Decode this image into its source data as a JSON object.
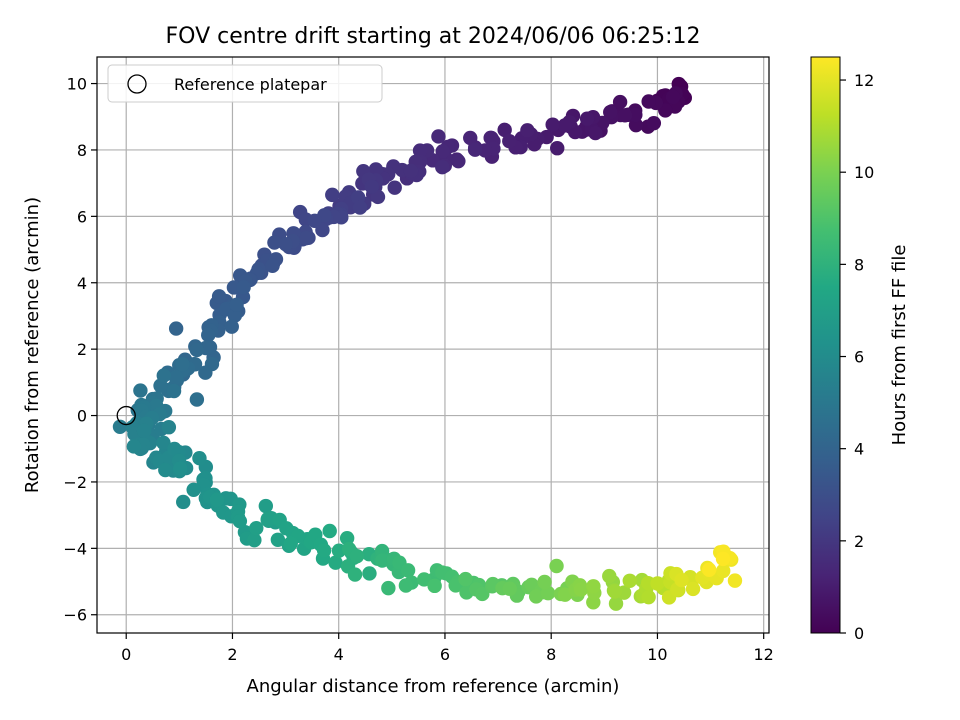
{
  "chart_data": {
    "type": "scatter",
    "title": "FOV centre drift starting at 2024/06/06 06:25:12",
    "xlabel": "Angular distance from reference (arcmin)",
    "ylabel": "Rotation from reference (arcmin)",
    "xlim": [
      -0.55,
      12.1
    ],
    "ylim": [
      -6.55,
      10.8
    ],
    "x_ticks": [
      0,
      2,
      4,
      6,
      8,
      10,
      12
    ],
    "y_ticks": [
      -6,
      -4,
      -2,
      0,
      2,
      4,
      6,
      8,
      10
    ],
    "grid": true,
    "legend": {
      "placement": "upper-left",
      "entries": [
        "Reference platepar"
      ]
    },
    "reference_point": {
      "x": 0,
      "y": 0
    },
    "colorbar": {
      "label": "Hours from first FF file",
      "range": [
        0,
        12.5
      ],
      "ticks": [
        0,
        2,
        4,
        6,
        8,
        10,
        12
      ],
      "colormap": "viridis"
    },
    "series_trend": [
      {
        "x": 10.5,
        "y": 9.7,
        "hours": 0.0
      },
      {
        "x": 10.1,
        "y": 9.4,
        "hours": 0.25
      },
      {
        "x": 9.0,
        "y": 8.8,
        "hours": 0.6
      },
      {
        "x": 8.3,
        "y": 8.6,
        "hours": 0.9
      },
      {
        "x": 6.8,
        "y": 8.1,
        "hours": 1.2
      },
      {
        "x": 5.8,
        "y": 7.8,
        "hours": 1.5
      },
      {
        "x": 5.0,
        "y": 7.1,
        "hours": 1.8
      },
      {
        "x": 4.4,
        "y": 6.7,
        "hours": 2.1
      },
      {
        "x": 3.8,
        "y": 6.0,
        "hours": 2.5
      },
      {
        "x": 3.0,
        "y": 5.3,
        "hours": 2.9
      },
      {
        "x": 2.4,
        "y": 4.2,
        "hours": 3.3
      },
      {
        "x": 1.9,
        "y": 3.2,
        "hours": 3.7
      },
      {
        "x": 1.4,
        "y": 2.0,
        "hours": 4.1
      },
      {
        "x": 0.9,
        "y": 1.0,
        "hours": 4.5
      },
      {
        "x": 0.4,
        "y": 0.2,
        "hours": 5.0
      },
      {
        "x": 0.15,
        "y": -0.4,
        "hours": 5.3
      },
      {
        "x": 0.5,
        "y": -0.8,
        "hours": 5.6
      },
      {
        "x": 1.0,
        "y": -1.4,
        "hours": 5.9
      },
      {
        "x": 1.5,
        "y": -2.3,
        "hours": 6.3
      },
      {
        "x": 2.3,
        "y": -3.1,
        "hours": 6.8
      },
      {
        "x": 3.2,
        "y": -3.7,
        "hours": 7.3
      },
      {
        "x": 4.2,
        "y": -4.2,
        "hours": 7.8
      },
      {
        "x": 5.3,
        "y": -4.8,
        "hours": 8.4
      },
      {
        "x": 6.5,
        "y": -5.1,
        "hours": 9.0
      },
      {
        "x": 7.6,
        "y": -5.2,
        "hours": 9.6
      },
      {
        "x": 8.7,
        "y": -5.3,
        "hours": 10.3
      },
      {
        "x": 9.8,
        "y": -5.3,
        "hours": 11.0
      },
      {
        "x": 10.6,
        "y": -5.1,
        "hours": 11.8
      },
      {
        "x": 11.5,
        "y": -4.4,
        "hours": 12.5
      }
    ],
    "point_spread": 0.22,
    "approx_point_count": 420
  }
}
